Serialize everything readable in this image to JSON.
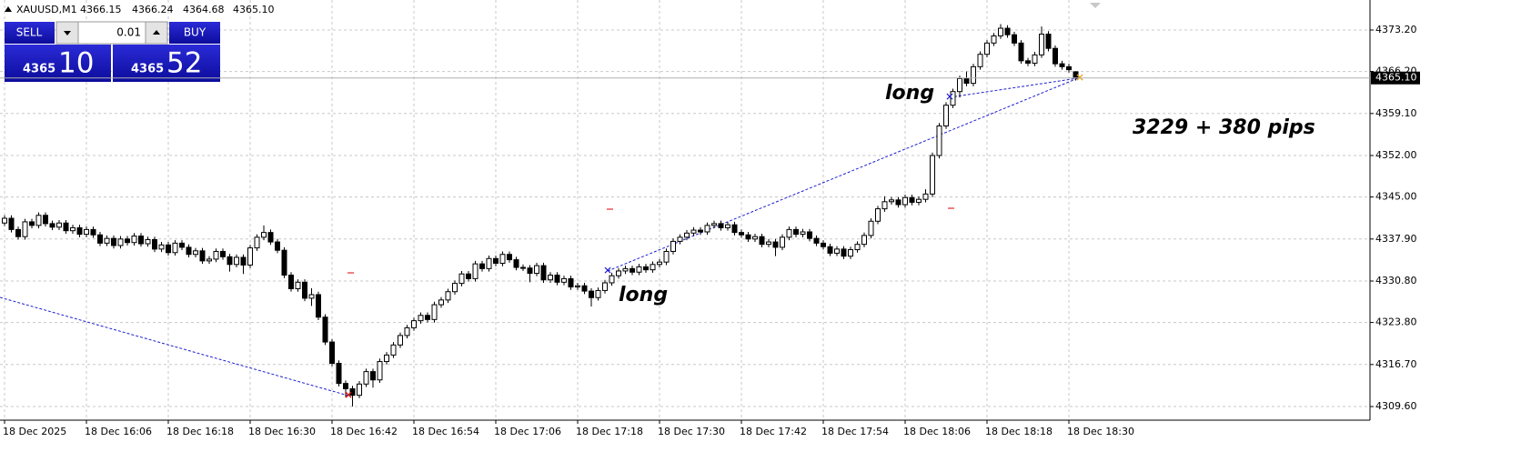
{
  "header": {
    "symbol": "XAUUSD,M1",
    "values": [
      "4366.15",
      "4366.24",
      "4364.68",
      "4365.10"
    ]
  },
  "trade_panel": {
    "sell": "SELL",
    "buy": "BUY",
    "lot": "0.01",
    "sell_big": "4365",
    "sell_small": "10",
    "buy_big": "4365",
    "buy_small": "52"
  },
  "chart_data": {
    "type": "candlestick",
    "annotations": [
      "long",
      "long",
      "3229 + 380 pips"
    ],
    "ylim": [
      4307.3,
      4378.27
    ],
    "yticks": [
      {
        "value": 4309.6,
        "label": "4309.60"
      },
      {
        "value": 4316.7,
        "label": "4316.70"
      },
      {
        "value": 4323.8,
        "label": "4323.80"
      },
      {
        "value": 4330.8,
        "label": "4330.80"
      },
      {
        "value": 4337.9,
        "label": "4337.90"
      },
      {
        "value": 4345,
        "label": "4345.00"
      },
      {
        "value": 4352,
        "label": "4352.00"
      },
      {
        "value": 4359.1,
        "label": "4359.10"
      },
      {
        "value": 4366.2,
        "label": "4366.20"
      },
      {
        "value": 4373.2,
        "label": "4373.20"
      }
    ],
    "current_price": {
      "value": 4365.1,
      "label": "4365.10"
    },
    "xticks": [
      {
        "value": 0,
        "label": "18 Dec 2025"
      },
      {
        "value": 12,
        "label": "18 Dec 16:06"
      },
      {
        "value": 24,
        "label": "18 Dec 16:18"
      },
      {
        "value": 36,
        "label": "18 Dec 16:30"
      },
      {
        "value": 48,
        "label": "18 Dec 16:42"
      },
      {
        "value": 60,
        "label": "18 Dec 16:54"
      },
      {
        "value": 72,
        "label": "18 Dec 17:06"
      },
      {
        "value": 84,
        "label": "18 Dec 17:18"
      },
      {
        "value": 96,
        "label": "18 Dec 17:30"
      },
      {
        "value": 108,
        "label": "18 Dec 17:42"
      },
      {
        "value": 120,
        "label": "18 Dec 17:54"
      },
      {
        "value": 132,
        "label": "18 Dec 18:06"
      },
      {
        "value": 144,
        "label": "18 Dec 18:18"
      },
      {
        "value": 156,
        "label": "18 Dec 18:30"
      }
    ],
    "grid": true,
    "up_color": "#ffffff",
    "down_color": "#000000",
    "candles": [
      [
        4340.6,
        4341.9,
        4340.1,
        4341.4
      ],
      [
        4341.4,
        4341.9,
        4339.0,
        4339.5
      ],
      [
        4339.5,
        4340.0,
        4337.8,
        4338.3
      ],
      [
        4338.3,
        4341.3,
        4337.8,
        4340.8
      ],
      [
        4340.8,
        4341.3,
        4339.7,
        4340.2
      ],
      [
        4340.2,
        4342.4,
        4339.7,
        4341.9
      ],
      [
        4341.9,
        4342.4,
        4340.0,
        4340.5
      ],
      [
        4340.5,
        4341.0,
        4339.4,
        4339.9
      ],
      [
        4339.9,
        4341.1,
        4339.4,
        4340.6
      ],
      [
        4340.6,
        4341.1,
        4338.8,
        4339.3
      ],
      [
        4339.3,
        4340.3,
        4338.8,
        4339.8
      ],
      [
        4339.8,
        4340.3,
        4338.2,
        4338.7
      ],
      [
        4338.7,
        4340.0,
        4338.2,
        4339.5
      ],
      [
        4339.5,
        4340.0,
        4338.1,
        4338.6
      ],
      [
        4338.6,
        4339.1,
        4336.7,
        4337.2
      ],
      [
        4337.2,
        4338.5,
        4336.7,
        4338.0
      ],
      [
        4338.0,
        4338.5,
        4336.3,
        4336.8
      ],
      [
        4336.8,
        4338.4,
        4336.3,
        4337.9
      ],
      [
        4337.9,
        4338.4,
        4336.8,
        4337.3
      ],
      [
        4337.3,
        4338.9,
        4336.8,
        4338.4
      ],
      [
        4338.4,
        4338.9,
        4336.6,
        4337.1
      ],
      [
        4337.1,
        4338.3,
        4336.6,
        4337.8
      ],
      [
        4337.8,
        4338.3,
        4335.7,
        4336.2
      ],
      [
        4336.2,
        4337.4,
        4335.7,
        4336.9
      ],
      [
        4336.9,
        4337.4,
        4335.1,
        4335.6
      ],
      [
        4335.6,
        4337.7,
        4335.1,
        4337.2
      ],
      [
        4337.2,
        4337.7,
        4336.0,
        4336.5
      ],
      [
        4336.5,
        4337.0,
        4334.8,
        4335.3
      ],
      [
        4335.3,
        4336.4,
        4334.8,
        4335.9
      ],
      [
        4335.9,
        4336.4,
        4333.7,
        4334.2
      ],
      [
        4334.2,
        4335.0,
        4333.7,
        4334.5
      ],
      [
        4334.5,
        4336.3,
        4334.0,
        4335.8
      ],
      [
        4335.8,
        4336.3,
        4334.4,
        4334.9
      ],
      [
        4334.9,
        4335.4,
        4332.4,
        4333.6
      ],
      [
        4333.6,
        4335.3,
        4333.1,
        4334.8
      ],
      [
        4334.8,
        4335.3,
        4332.0,
        4333.5
      ],
      [
        4333.5,
        4336.9,
        4333.0,
        4336.4
      ],
      [
        4336.4,
        4338.7,
        4335.9,
        4338.2
      ],
      [
        4338.2,
        4340.2,
        4337.7,
        4339.0
      ],
      [
        4339.0,
        4339.5,
        4336.9,
        4337.4
      ],
      [
        4337.4,
        4337.9,
        4335.5,
        4336.0
      ],
      [
        4336.0,
        4336.5,
        4331.3,
        4331.8
      ],
      [
        4331.8,
        4332.3,
        4329.0,
        4329.5
      ],
      [
        4329.5,
        4331.1,
        4329.0,
        4330.6
      ],
      [
        4330.6,
        4331.1,
        4327.4,
        4327.9
      ],
      [
        4327.9,
        4329.6,
        4326.6,
        4328.5
      ],
      [
        4328.5,
        4329.0,
        4324.2,
        4324.7
      ],
      [
        4324.7,
        4325.2,
        4320.0,
        4320.5
      ],
      [
        4320.5,
        4321.0,
        4316.4,
        4316.9
      ],
      [
        4316.9,
        4317.4,
        4313.0,
        4313.5
      ],
      [
        4313.5,
        4314.0,
        4311.2,
        4312.6
      ],
      [
        4312.6,
        4313.1,
        4309.6,
        4311.5
      ],
      [
        4311.5,
        4313.9,
        4311.0,
        4313.4
      ],
      [
        4313.4,
        4316.0,
        4312.9,
        4315.5
      ],
      [
        4315.5,
        4316.0,
        4312.8,
        4314.1
      ],
      [
        4314.1,
        4317.7,
        4313.6,
        4317.2
      ],
      [
        4317.2,
        4318.8,
        4316.7,
        4318.3
      ],
      [
        4318.3,
        4320.5,
        4317.8,
        4320.0
      ],
      [
        4320.0,
        4322.1,
        4319.5,
        4321.6
      ],
      [
        4321.6,
        4323.4,
        4321.1,
        4322.9
      ],
      [
        4322.9,
        4324.6,
        4322.4,
        4324.1
      ],
      [
        4324.1,
        4325.5,
        4323.6,
        4325.0
      ],
      [
        4325.0,
        4325.5,
        4323.8,
        4324.3
      ],
      [
        4324.3,
        4327.3,
        4323.8,
        4326.8
      ],
      [
        4326.8,
        4328.1,
        4326.3,
        4327.6
      ],
      [
        4327.6,
        4329.5,
        4327.1,
        4329.0
      ],
      [
        4329.0,
        4330.9,
        4328.5,
        4330.4
      ],
      [
        4330.4,
        4332.5,
        4329.9,
        4332.0
      ],
      [
        4332.0,
        4332.5,
        4330.7,
        4331.2
      ],
      [
        4331.2,
        4334.2,
        4330.7,
        4333.7
      ],
      [
        4333.7,
        4334.2,
        4332.4,
        4332.9
      ],
      [
        4332.9,
        4335.1,
        4332.4,
        4334.6
      ],
      [
        4334.6,
        4335.1,
        4333.3,
        4333.8
      ],
      [
        4333.8,
        4335.8,
        4333.3,
        4335.3
      ],
      [
        4335.3,
        4335.8,
        4333.9,
        4334.4
      ],
      [
        4334.4,
        4334.9,
        4332.6,
        4333.1
      ],
      [
        4333.1,
        4333.6,
        4332.5,
        4333.0
      ],
      [
        4333.0,
        4333.5,
        4330.6,
        4332.1
      ],
      [
        4332.1,
        4333.9,
        4331.6,
        4333.4
      ],
      [
        4333.4,
        4333.9,
        4330.5,
        4331.0
      ],
      [
        4331.0,
        4332.3,
        4330.5,
        4331.8
      ],
      [
        4331.8,
        4332.3,
        4330.1,
        4330.6
      ],
      [
        4330.6,
        4331.7,
        4330.1,
        4331.2
      ],
      [
        4331.2,
        4331.7,
        4329.3,
        4329.8
      ],
      [
        4329.8,
        4330.5,
        4329.3,
        4330.0
      ],
      [
        4330.0,
        4330.5,
        4328.6,
        4329.1
      ],
      [
        4329.1,
        4329.6,
        4326.5,
        4328.0
      ],
      [
        4328.0,
        4329.7,
        4327.5,
        4329.2
      ],
      [
        4329.2,
        4331.0,
        4328.7,
        4330.5
      ],
      [
        4330.5,
        4332.2,
        4330.0,
        4331.7
      ],
      [
        4331.7,
        4333.0,
        4331.2,
        4332.5
      ],
      [
        4332.5,
        4333.4,
        4332.0,
        4332.9
      ],
      [
        4332.9,
        4333.4,
        4331.8,
        4332.3
      ],
      [
        4332.3,
        4333.7,
        4331.8,
        4333.2
      ],
      [
        4333.2,
        4333.7,
        4332.2,
        4332.7
      ],
      [
        4332.7,
        4334.1,
        4332.2,
        4333.6
      ],
      [
        4333.6,
        4334.5,
        4333.1,
        4334.0
      ],
      [
        4334.0,
        4336.3,
        4333.5,
        4335.8
      ],
      [
        4335.8,
        4338.0,
        4335.3,
        4337.5
      ],
      [
        4337.5,
        4338.7,
        4337.0,
        4338.2
      ],
      [
        4338.2,
        4339.4,
        4337.7,
        4338.9
      ],
      [
        4338.9,
        4339.9,
        4338.4,
        4339.4
      ],
      [
        4339.4,
        4339.9,
        4338.6,
        4339.1
      ],
      [
        4339.1,
        4340.7,
        4338.6,
        4340.2
      ],
      [
        4340.2,
        4341.0,
        4339.7,
        4340.5
      ],
      [
        4340.5,
        4341.0,
        4339.3,
        4339.8
      ],
      [
        4339.8,
        4340.8,
        4339.3,
        4340.3
      ],
      [
        4340.3,
        4340.8,
        4338.5,
        4339.0
      ],
      [
        4339.0,
        4339.5,
        4338.1,
        4338.6
      ],
      [
        4338.6,
        4339.1,
        4337.4,
        4337.9
      ],
      [
        4337.9,
        4338.8,
        4337.4,
        4338.3
      ],
      [
        4338.3,
        4338.8,
        4336.5,
        4337.0
      ],
      [
        4337.0,
        4337.9,
        4336.5,
        4337.4
      ],
      [
        4337.4,
        4337.9,
        4335.0,
        4336.5
      ],
      [
        4336.5,
        4338.7,
        4336.0,
        4338.2
      ],
      [
        4338.2,
        4340.0,
        4337.7,
        4339.5
      ],
      [
        4339.5,
        4340.0,
        4338.2,
        4338.7
      ],
      [
        4338.7,
        4339.6,
        4338.2,
        4339.1
      ],
      [
        4339.1,
        4339.6,
        4337.5,
        4338.0
      ],
      [
        4338.0,
        4338.5,
        4336.7,
        4337.2
      ],
      [
        4337.2,
        4337.7,
        4336.1,
        4336.6
      ],
      [
        4336.6,
        4337.1,
        4335.0,
        4335.5
      ],
      [
        4335.5,
        4336.7,
        4335.0,
        4336.2
      ],
      [
        4336.2,
        4336.7,
        4334.5,
        4335.0
      ],
      [
        4335.0,
        4336.6,
        4334.5,
        4336.1
      ],
      [
        4336.1,
        4337.5,
        4335.6,
        4337.0
      ],
      [
        4337.0,
        4339.0,
        4336.5,
        4338.5
      ],
      [
        4338.5,
        4341.4,
        4338.0,
        4340.9
      ],
      [
        4340.9,
        4343.5,
        4340.4,
        4343.0
      ],
      [
        4343.0,
        4345.1,
        4342.5,
        4344.2
      ],
      [
        4344.2,
        4345.0,
        4343.7,
        4344.5
      ],
      [
        4344.5,
        4345.0,
        4343.2,
        4343.7
      ],
      [
        4343.7,
        4345.4,
        4343.2,
        4344.9
      ],
      [
        4344.9,
        4345.4,
        4343.6,
        4344.1
      ],
      [
        4344.1,
        4345.1,
        4343.6,
        4344.6
      ],
      [
        4344.6,
        4346.3,
        4344.1,
        4345.5
      ],
      [
        4345.5,
        4352.5,
        4345.0,
        4352.0
      ],
      [
        4352.0,
        4357.5,
        4351.5,
        4357.0
      ],
      [
        4357.0,
        4361.0,
        4356.5,
        4360.5
      ],
      [
        4360.5,
        4363.3,
        4360.0,
        4362.8
      ],
      [
        4362.8,
        4365.5,
        4361.8,
        4365.0
      ],
      [
        4365.0,
        4366.2,
        4363.7,
        4364.2
      ],
      [
        4364.2,
        4367.5,
        4363.7,
        4367.0
      ],
      [
        4367.0,
        4369.6,
        4366.5,
        4369.1
      ],
      [
        4369.1,
        4371.5,
        4368.6,
        4371.0
      ],
      [
        4371.0,
        4372.7,
        4370.5,
        4372.2
      ],
      [
        4372.2,
        4374.2,
        4371.7,
        4373.5
      ],
      [
        4373.5,
        4374.0,
        4371.9,
        4372.4
      ],
      [
        4372.4,
        4372.9,
        4370.5,
        4371.0
      ],
      [
        4371.0,
        4371.5,
        4367.5,
        4368.0
      ],
      [
        4368.0,
        4368.5,
        4367.1,
        4367.6
      ],
      [
        4367.6,
        4369.5,
        4367.1,
        4369.0
      ],
      [
        4369.0,
        4373.8,
        4368.5,
        4372.5
      ],
      [
        4372.5,
        4373.0,
        4369.6,
        4370.1
      ],
      [
        4370.1,
        4370.6,
        4367.0,
        4367.5
      ],
      [
        4367.5,
        4368.0,
        4366.5,
        4367.0
      ],
      [
        4367.0,
        4367.5,
        4366.0,
        4366.5
      ],
      [
        4366.15,
        4366.24,
        4364.68,
        4365.1
      ]
    ]
  }
}
